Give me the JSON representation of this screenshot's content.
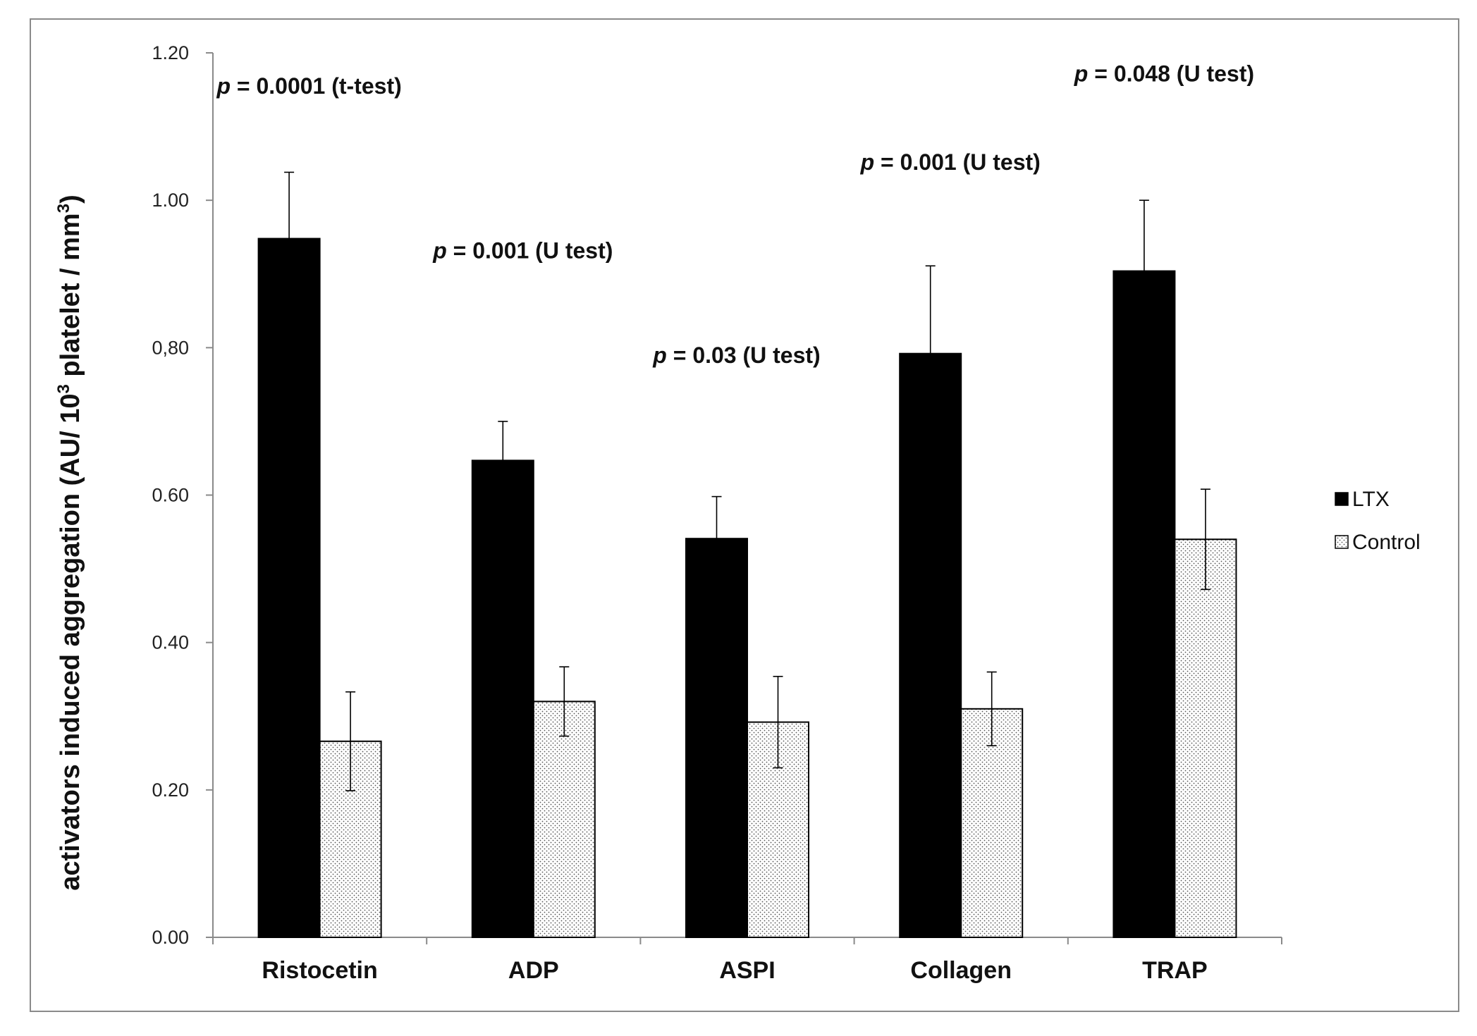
{
  "chart_data": {
    "type": "bar",
    "title": "",
    "xlabel": "",
    "ylabel": {
      "prefix": "activators induced aggregation (AU/ 10",
      "sup1": "3",
      "middle": " platelet / mm",
      "sup2": "3",
      "suffix": ")"
    },
    "ylim": [
      0,
      1.2
    ],
    "yticks": [
      {
        "value": 0,
        "label": "0.00"
      },
      {
        "value": 0.2,
        "label": "0.20"
      },
      {
        "value": 0.4,
        "label": "0.40"
      },
      {
        "value": 0.6,
        "label": "0.60"
      },
      {
        "value": 0.8,
        "label": "0,80"
      },
      {
        "value": 1.0,
        "label": "1.00"
      },
      {
        "value": 1.2,
        "label": "1.20"
      }
    ],
    "categories": [
      "Ristocetin",
      "ADP",
      "ASPI",
      "Collagen",
      "TRAP"
    ],
    "series": [
      {
        "name": "LTX",
        "color": "#000000",
        "pattern": "solid",
        "values": [
          0.948,
          0.647,
          0.541,
          0.792,
          0.904
        ],
        "errors": [
          0.09,
          0.053,
          0.057,
          0.119,
          0.096
        ]
      },
      {
        "name": "Control",
        "color": "#ffffff",
        "pattern": "dotted",
        "values": [
          0.266,
          0.32,
          0.292,
          0.31,
          0.54
        ],
        "errors": [
          0.067,
          0.047,
          0.062,
          0.05,
          0.068
        ]
      }
    ],
    "annotations": [
      {
        "category": "Ristocetin",
        "p": "p",
        "text": " = 0.0001 (t-test)",
        "y": 1.155
      },
      {
        "category": "ADP",
        "p": "p",
        "text": " = 0.001 (U test)",
        "y": 0.932
      },
      {
        "category": "ASPI",
        "p": "p",
        "text": " = 0.03 (U test)",
        "y": 0.79
      },
      {
        "category": "Collagen",
        "p": "p",
        "text": " = 0.001 (U test)",
        "y": 1.052
      },
      {
        "category": "TRAP",
        "p": "p",
        "text": " = 0.048 (U test)",
        "y": 1.172
      }
    ],
    "legend": {
      "placement": "right",
      "entries": [
        "LTX",
        "Control"
      ]
    },
    "grid": false
  }
}
